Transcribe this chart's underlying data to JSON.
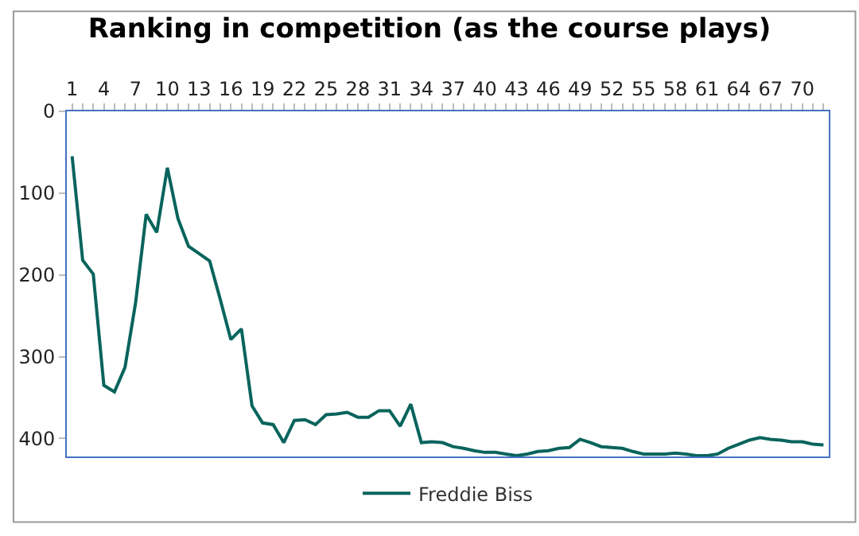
{
  "chart_data": {
    "type": "line",
    "title": "Ranking in competition (as the course plays)",
    "categories": [
      "1",
      null,
      null,
      "4",
      null,
      null,
      "7",
      null,
      null,
      "10",
      null,
      null,
      "13",
      null,
      null,
      "16",
      null,
      null,
      "19",
      null,
      null,
      "22",
      null,
      null,
      "25",
      null,
      null,
      "28",
      null,
      null,
      "31",
      null,
      null,
      "34",
      null,
      null,
      "37",
      null,
      null,
      "40",
      null,
      null,
      "43",
      null,
      null,
      "46",
      null,
      null,
      "49",
      null,
      null,
      "52",
      null,
      null,
      "55",
      null,
      null,
      "58",
      null,
      null,
      "61",
      null,
      null,
      "64",
      null,
      null,
      "67",
      null,
      null,
      "70",
      null,
      null
    ],
    "series": [
      {
        "name": "Freddie Biss",
        "color": "#08645c",
        "values": [
          55,
          182,
          199,
          335,
          343,
          313,
          234,
          126,
          148,
          69,
          131,
          165,
          174,
          183,
          230,
          279,
          266,
          360,
          381,
          383,
          405,
          378,
          377,
          383,
          371,
          370,
          368,
          374,
          374,
          366,
          366,
          385,
          358,
          405,
          404,
          405,
          410,
          412,
          415,
          417,
          417,
          419,
          421,
          419,
          416,
          415,
          412,
          411,
          401,
          405,
          410,
          411,
          412,
          416,
          419,
          419,
          419,
          418,
          419,
          421,
          421,
          419,
          412,
          407,
          402,
          399,
          401,
          402,
          404,
          404,
          407,
          408
        ]
      }
    ],
    "ylim": [
      422,
      0
    ],
    "yticks": [
      0,
      100,
      200,
      300,
      400
    ],
    "legend": "bottom",
    "marker": "none",
    "line_style": "solid"
  }
}
